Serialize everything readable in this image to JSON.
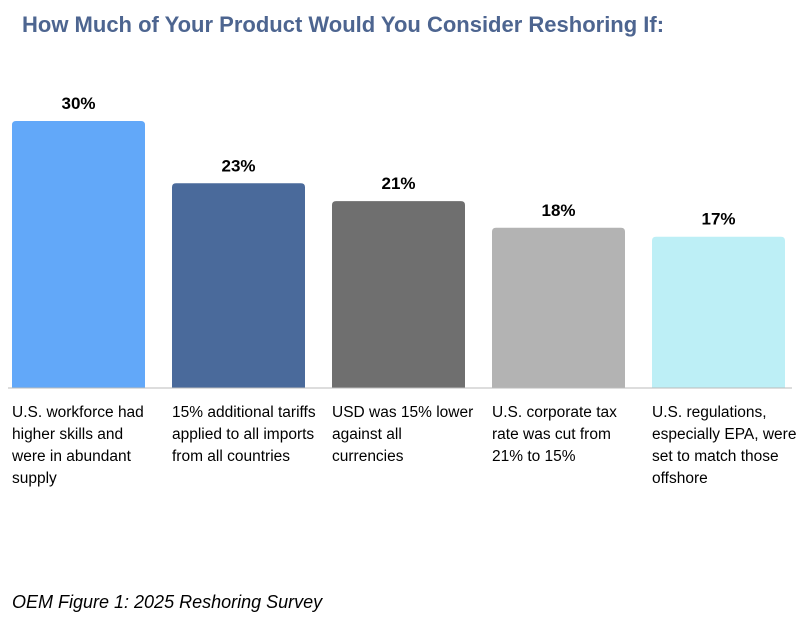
{
  "chart_data": {
    "type": "bar",
    "title": "How Much of Your Product Would You Consider Reshoring If:",
    "categories": [
      "U.S. workforce had higher skills and were in abundant supply",
      "15% additional tariffs applied to all imports from all countries",
      "USD was 15% lower against all currencies",
      "U.S. corporate tax rate was cut from 21% to 15%",
      "U.S. regulations, especially EPA, were set to match those offshore"
    ],
    "values": [
      30,
      23,
      21,
      18,
      17
    ],
    "value_labels": [
      "30%",
      "23%",
      "21%",
      "18%",
      "17%"
    ],
    "colors": [
      "#62a8f9",
      "#4a6a9b",
      "#6f6f6f",
      "#b3b3b3",
      "#bdeff6"
    ],
    "ylim": [
      0,
      30
    ],
    "caption": "OEM Figure 1: 2025 Reshoring Survey"
  }
}
